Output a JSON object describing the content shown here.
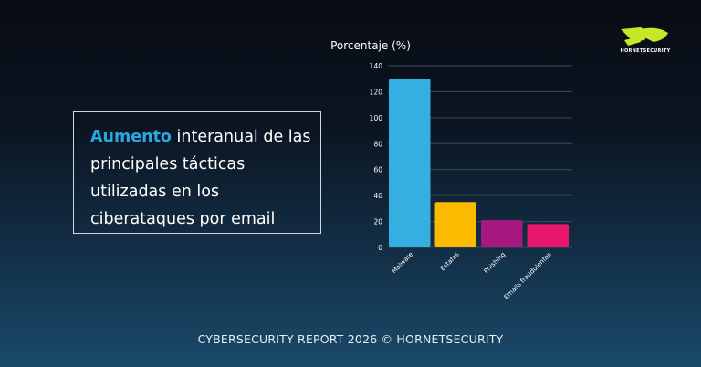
{
  "title": {
    "highlight": "Aumento",
    "rest": " interanual de las principales tácticas utilizadas en los ciberataques por email"
  },
  "footer": "CYBERSECURITY REPORT 2026 © HORNETSECURITY",
  "logo": {
    "text": "HORNETSECURITY",
    "color": "#c8e62a"
  },
  "chart_data": {
    "type": "bar",
    "ylabel": "Porcentaje (%)",
    "categories": [
      "Malware",
      "Estafas",
      "Phishing",
      "Emails fraudulentos"
    ],
    "values": [
      130,
      35,
      21,
      18
    ],
    "colors": [
      "#35aee2",
      "#fbb900",
      "#a8197f",
      "#e6176c"
    ],
    "ylim": [
      0,
      140
    ],
    "yticks": [
      0,
      20,
      40,
      60,
      80,
      100,
      120,
      140
    ],
    "grid": true,
    "legend": "none"
  }
}
